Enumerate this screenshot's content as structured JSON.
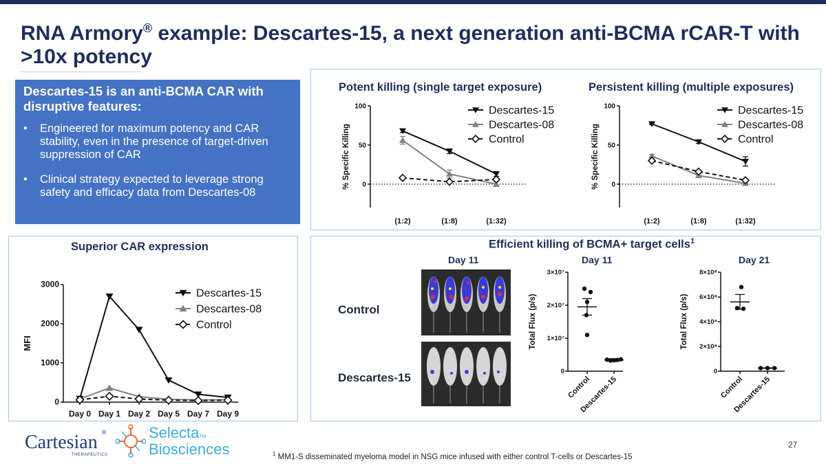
{
  "slide": {
    "title": "RNA Armory",
    "title_reg": "®",
    "title_rest": " example: Descartes-15, a next generation anti-BCMA rCAR-T with >10x potency",
    "page_number": "27",
    "footnote_mark": "1",
    "footnote": "MM1-S disseminated myeloma model in NSG mice infused with either control T-cells or Descartes-15"
  },
  "intro_box": {
    "heading": "Descartes-15 is an anti-BCMA CAR with disruptive features:",
    "bullets": [
      "Engineered for maximum potency and CAR stability, even in the presence of target-driven suppression of CAR",
      "Clinical strategy expected to leverage strong safety and efficacy data from Descartes-08"
    ]
  },
  "logos": {
    "cartesian": "Cartesian",
    "cartesian_sub": "THERAPEUTICS",
    "selecta_1": "Selecta",
    "selecta_tm": "TM",
    "selecta_2": "Biosciences"
  },
  "bcma_section": {
    "title": "Efficient killing of BCMA+ target cells",
    "title_sup": "1",
    "image_day_label": "Day 11",
    "row_control": "Control",
    "row_descartes": "Descartes-15"
  },
  "colors": {
    "descartes15": "#111111",
    "descartes08": "#808080",
    "control": "#111111",
    "accent": "#1f2d5c",
    "panel_border": "#9fc5e8"
  },
  "chart_data": [
    {
      "id": "potent",
      "type": "line",
      "title": "Potent killing (single target exposure)",
      "ylabel": "% Specific Killing",
      "xlabel": "",
      "categories": [
        "(1:2)",
        "(1:8)",
        "(1:32)"
      ],
      "ylim": [
        -30,
        100
      ],
      "yticks": [
        "0",
        "50",
        "100"
      ],
      "series": [
        {
          "name": "Descartes-15",
          "values": [
            68,
            42,
            13
          ],
          "errors": [
            2,
            3,
            3
          ],
          "marker": "triangle-down",
          "dash": false
        },
        {
          "name": "Descartes-08",
          "values": [
            56,
            13,
            0
          ],
          "errors": [
            5,
            5,
            3
          ],
          "marker": "triangle-up",
          "dash": false
        },
        {
          "name": "Control",
          "values": [
            8,
            3,
            6
          ],
          "errors": [
            1,
            1,
            1
          ],
          "marker": "diamond",
          "dash": true
        }
      ],
      "legend": "top-right"
    },
    {
      "id": "persistent",
      "type": "line",
      "title": "Persistent killing (multiple exposures)",
      "ylabel": "% Specific Killing",
      "xlabel": "",
      "categories": [
        "(1:2)",
        "(1:8)",
        "(1:32)"
      ],
      "ylim": [
        -30,
        100
      ],
      "yticks": [
        "0",
        "50",
        "100"
      ],
      "series": [
        {
          "name": "Descartes-15",
          "values": [
            77,
            54,
            29
          ],
          "errors": [
            1,
            2,
            6
          ],
          "marker": "triangle-down",
          "dash": false
        },
        {
          "name": "Descartes-08",
          "values": [
            36,
            11,
            1
          ],
          "errors": [
            2,
            2,
            1
          ],
          "marker": "triangle-up",
          "dash": false
        },
        {
          "name": "Control",
          "values": [
            30,
            16,
            5
          ],
          "errors": [
            1,
            1,
            1
          ],
          "marker": "diamond",
          "dash": true
        }
      ],
      "legend": "top-right"
    },
    {
      "id": "car_expression",
      "type": "line",
      "title": "Superior CAR expression",
      "ylabel": "MFI",
      "xlabel": "",
      "categories": [
        "Day 0",
        "Day 1",
        "Day 2",
        "Day 5",
        "Day 7",
        "Day 9"
      ],
      "ylim": [
        0,
        3000
      ],
      "yticks": [
        "0",
        "1000",
        "2000",
        "3000"
      ],
      "series": [
        {
          "name": "Descartes-15",
          "values": [
            90,
            2700,
            1850,
            560,
            200,
            120
          ],
          "marker": "triangle-down",
          "dash": false
        },
        {
          "name": "Descartes-08",
          "values": [
            80,
            360,
            140,
            70,
            60,
            60
          ],
          "marker": "triangle-up",
          "dash": false
        },
        {
          "name": "Control",
          "values": [
            60,
            150,
            80,
            50,
            40,
            50
          ],
          "marker": "diamond",
          "dash": true
        }
      ],
      "legend": "top-right"
    },
    {
      "id": "flux_day11",
      "type": "scatter",
      "title": "Day 11",
      "ylabel": "Total Flux (p/s)",
      "categories": [
        "Control",
        "Descartes-15"
      ],
      "ylim": [
        0,
        30000000
      ],
      "yticks": [
        "0",
        "1×10⁷",
        "2×10⁷",
        "3×10⁷"
      ],
      "groups": [
        {
          "name": "Control",
          "points": [
            25000000,
            24000000,
            21000000,
            17000000,
            11000000
          ],
          "mean": 19500000,
          "sem": 2500000
        },
        {
          "name": "Descartes-15",
          "points": [
            3500000,
            3200000,
            3300000,
            3400000,
            3600000
          ],
          "mean": 3400000,
          "sem": 400000
        }
      ]
    },
    {
      "id": "flux_day21",
      "type": "scatter",
      "title": "Day 21",
      "ylabel": "Total Flux (p/s)",
      "categories": [
        "Control",
        "Descartes-15"
      ],
      "ylim": [
        0,
        800000000
      ],
      "yticks": [
        "0",
        "2×10⁸",
        "4×10⁸",
        "6×10⁸",
        "8×10⁸"
      ],
      "groups": [
        {
          "name": "Control",
          "points": [
            680000000,
            510000000,
            505000000
          ],
          "mean": 560000000,
          "sem": 60000000
        },
        {
          "name": "Descartes-15",
          "points": [
            25000000,
            25000000,
            25000000
          ],
          "mean": 25000000,
          "sem": 2000000
        }
      ]
    }
  ]
}
